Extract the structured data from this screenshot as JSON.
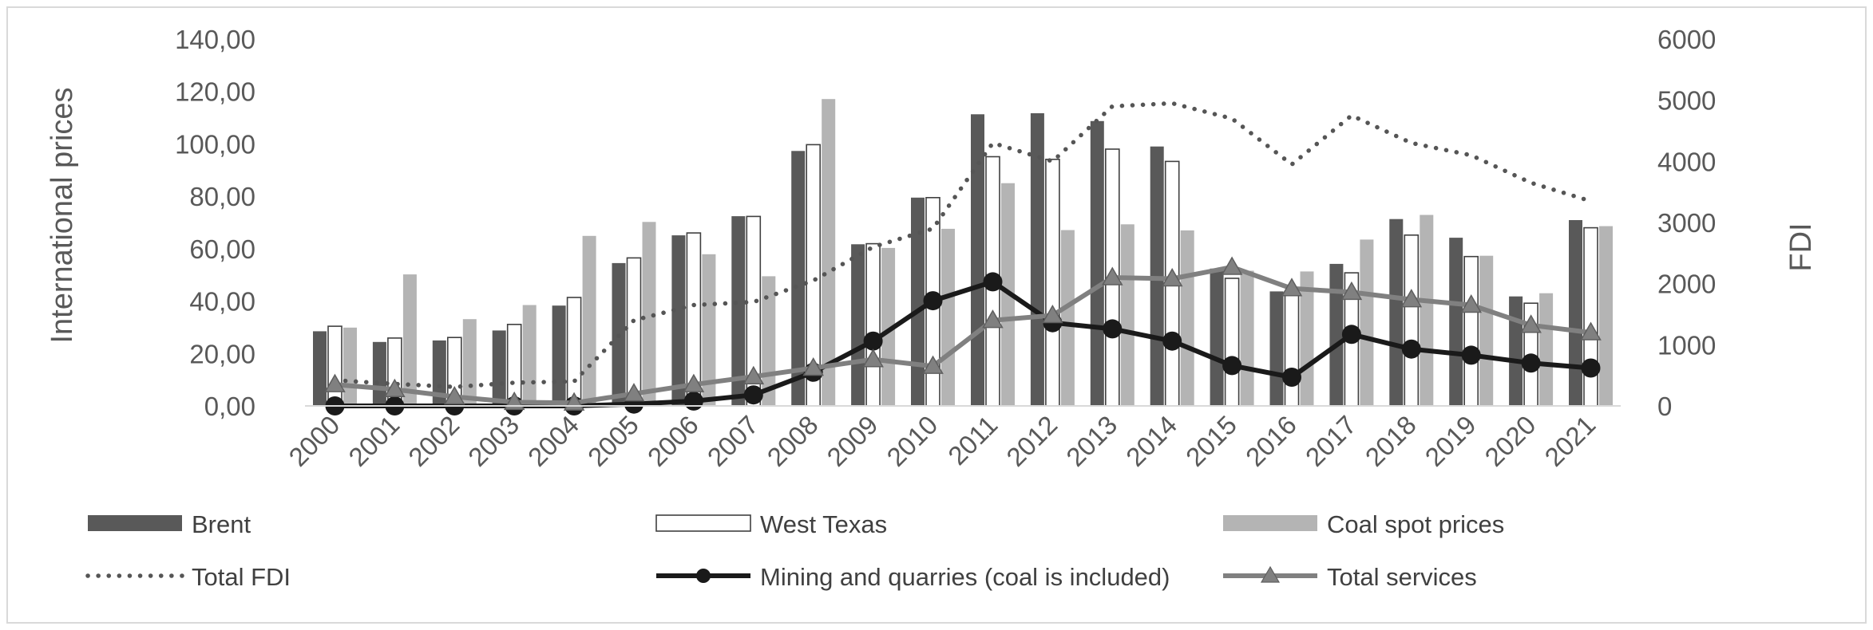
{
  "chart_data": {
    "type": "bar",
    "title": "",
    "categories": [
      "2000",
      "2001",
      "2002",
      "2003",
      "2004",
      "2005",
      "2006",
      "2007",
      "2008",
      "2009",
      "2010",
      "2011",
      "2012",
      "2013",
      "2014",
      "2015",
      "2016",
      "2017",
      "2018",
      "2019",
      "2020",
      "2021"
    ],
    "ylabel": "International prices",
    "y2label": "FDI",
    "ylim": [
      0,
      140
    ],
    "y2lim": [
      0,
      6000
    ],
    "y_ticks": [
      "0,00",
      "20,00",
      "40,00",
      "60,00",
      "80,00",
      "100,00",
      "120,00",
      "140,00"
    ],
    "y2_ticks": [
      "0",
      "1000",
      "2000",
      "3000",
      "4000",
      "5000",
      "6000"
    ],
    "bar_series": [
      {
        "name": "Brent",
        "axis": "left",
        "style": "dark-bar",
        "values": [
          28.5,
          24.4,
          25.0,
          28.8,
          38.3,
          54.5,
          65.1,
          72.4,
          97.3,
          61.7,
          79.5,
          111.3,
          111.7,
          108.7,
          99.0,
          52.4,
          43.7,
          54.2,
          71.3,
          64.2,
          41.8,
          70.9
        ]
      },
      {
        "name": "West Texas",
        "axis": "left",
        "style": "outline-bar",
        "values": [
          30.4,
          25.9,
          26.1,
          31.1,
          41.4,
          56.5,
          66.0,
          72.3,
          99.7,
          61.9,
          79.5,
          95.1,
          94.1,
          98.0,
          93.3,
          48.7,
          43.3,
          50.8,
          65.2,
          57.0,
          39.2,
          68.0
        ]
      },
      {
        "name": "Coal spot prices",
        "axis": "left",
        "style": "light-bar",
        "values": [
          29.9,
          50.2,
          33.1,
          38.5,
          64.9,
          70.2,
          57.9,
          49.5,
          117.1,
          60.3,
          67.6,
          85.0,
          67.1,
          69.3,
          67.0,
          51.6,
          51.3,
          63.5,
          72.9,
          57.3,
          43.0,
          68.6
        ]
      }
    ],
    "line_series": [
      {
        "name": "Total FDI",
        "axis": "right",
        "style": "dotted",
        "values": [
          420,
          360,
          310,
          380,
          400,
          1400,
          1650,
          1700,
          2050,
          2600,
          2900,
          4300,
          4000,
          4900,
          4950,
          4700,
          3950,
          4750,
          4300,
          4100,
          3650,
          3350
        ]
      },
      {
        "name": "Mining and quarries (coal is included)",
        "axis": "right",
        "style": "black-circle",
        "values": [
          0,
          0,
          0,
          0,
          0,
          30,
          80,
          180,
          550,
          1060,
          1720,
          2030,
          1360,
          1260,
          1060,
          660,
          470,
          1170,
          930,
          830,
          700,
          620
        ]
      },
      {
        "name": "Total services",
        "axis": "right",
        "style": "gray-triangle",
        "values": [
          350,
          270,
          150,
          60,
          50,
          200,
          350,
          480,
          620,
          760,
          650,
          1400,
          1480,
          2100,
          2080,
          2270,
          1920,
          1860,
          1740,
          1650,
          1320,
          1200
        ]
      }
    ],
    "legend": [
      "Brent",
      "West Texas",
      "Coal spot prices",
      "Total FDI",
      "Mining and quarries (coal is included)",
      "Total services"
    ],
    "legend_position": "bottom",
    "grid": false
  },
  "colors": {
    "brent": "#595959",
    "west_texas_fill": "#ffffff",
    "west_texas_edge": "#404040",
    "coal": "#b4b4b4",
    "total_fdi": "#555555",
    "mining": "#1a1a1a",
    "services": "#808080",
    "axis_text": "#595959"
  }
}
